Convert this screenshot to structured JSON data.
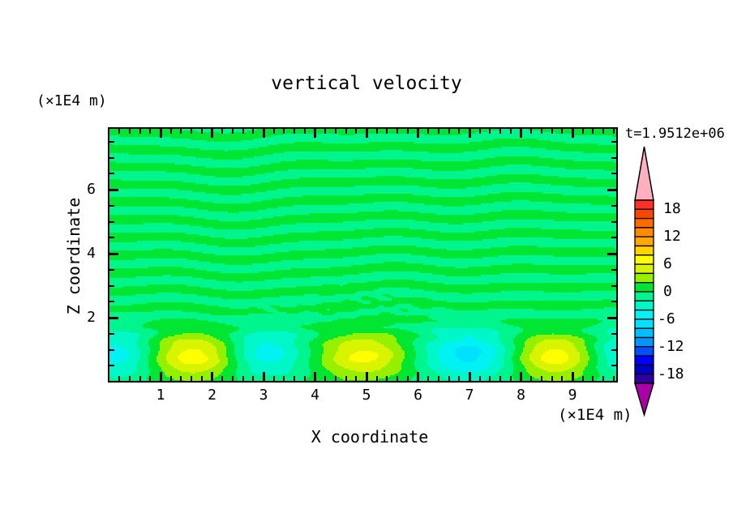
{
  "title": "vertical velocity",
  "time_label": "t=1.9512e+06",
  "axes": {
    "x": {
      "label": "X coordinate",
      "unit": "(×1E4 m)",
      "major_ticks": [
        1,
        2,
        3,
        4,
        5,
        6,
        7,
        8,
        9
      ],
      "minor_step": 0.2,
      "range": [
        0,
        9.87
      ]
    },
    "y": {
      "label": "Z coordinate",
      "unit": "(×1E4 m)",
      "major_ticks": [
        6,
        4,
        2
      ],
      "minor_step": 0.5,
      "range": [
        0,
        7.9
      ]
    }
  },
  "colorbar": {
    "labels": [
      "18",
      "12",
      "6",
      "0",
      "-6",
      "-12",
      "-18"
    ],
    "label_boundaries": [
      1,
      4,
      7,
      10,
      13,
      16,
      19
    ],
    "max": 20,
    "min": -20,
    "interval": 2,
    "segment_colors": [
      "#FF3028",
      "#FF4500",
      "#FF6A00",
      "#FF8A00",
      "#FFA800",
      "#FFD200",
      "#FFFF00",
      "#D8F400",
      "#97F000",
      "#00E632",
      "#00F58F",
      "#00F7C8",
      "#00F2F2",
      "#00E0FF",
      "#00BFFF",
      "#0096FF",
      "#0050FF",
      "#0000FF",
      "#0000C8",
      "#3000A0"
    ],
    "over_color": "#FFB0C0",
    "under_color": "#AA00AA"
  },
  "chart_data": {
    "type": "contour",
    "title": "vertical velocity",
    "field_units": "m (axes ×1E4)",
    "contour_interval": 2,
    "x_range": [
      0,
      9.87
    ],
    "z_range": [
      0,
      7.9
    ],
    "description": "Filled contour field of vertical velocity at t=1.9512e+06. Upper region (z>1.8) shows weak alternating horizontal bands oscillating about 0 (between the 0..2 green band and 0..-2 spring-green band). Lower boundary region (z<1.8) holds alternating strong updrafts (yellow cores, w up to ~+7) and downdrafts (cyan cores, w down to ~-7).",
    "stripes": {
      "period": 0.55,
      "amplitude": 0.95,
      "phase_terms": [
        [
          1.15,
          0.62,
          0.0,
          0.4
        ],
        [
          0.85,
          1.5,
          0.35,
          2.2
        ],
        [
          0.5,
          2.9,
          0.0,
          0.9
        ]
      ],
      "amp_mod": [
        0.75,
        0.3,
        2.1,
        4.8
      ],
      "fade_zmin": 0.8,
      "fade_zspan": 0.9,
      "min_amp_frac": 0.25
    },
    "detail_patch": {
      "x": 4.8,
      "z": 2.3,
      "sx": 1.1,
      "sz": 0.4,
      "amp": 1.0,
      "fx": 8.5,
      "fz": 21
    },
    "blobs": [
      {
        "x": 0.18,
        "z": 0.85,
        "a": -5.2,
        "sx": 0.5,
        "sz": 0.55
      },
      {
        "x": 1.66,
        "z": 0.8,
        "a": 7.2,
        "sx": 0.62,
        "sz": 0.5
      },
      {
        "x": 3.03,
        "z": 0.9,
        "a": -5.4,
        "sx": 0.55,
        "sz": 0.55
      },
      {
        "x": 4.95,
        "z": 0.8,
        "a": 6.6,
        "sx": 0.62,
        "sz": 0.5
      },
      {
        "x": 7.0,
        "z": 0.85,
        "a": -6.8,
        "sx": 0.65,
        "sz": 0.55
      },
      {
        "x": 8.65,
        "z": 0.8,
        "a": 7.2,
        "sx": 0.6,
        "sz": 0.5
      },
      {
        "x": 10.0,
        "z": 0.9,
        "a": -5.0,
        "sx": 0.5,
        "sz": 0.55
      }
    ]
  }
}
